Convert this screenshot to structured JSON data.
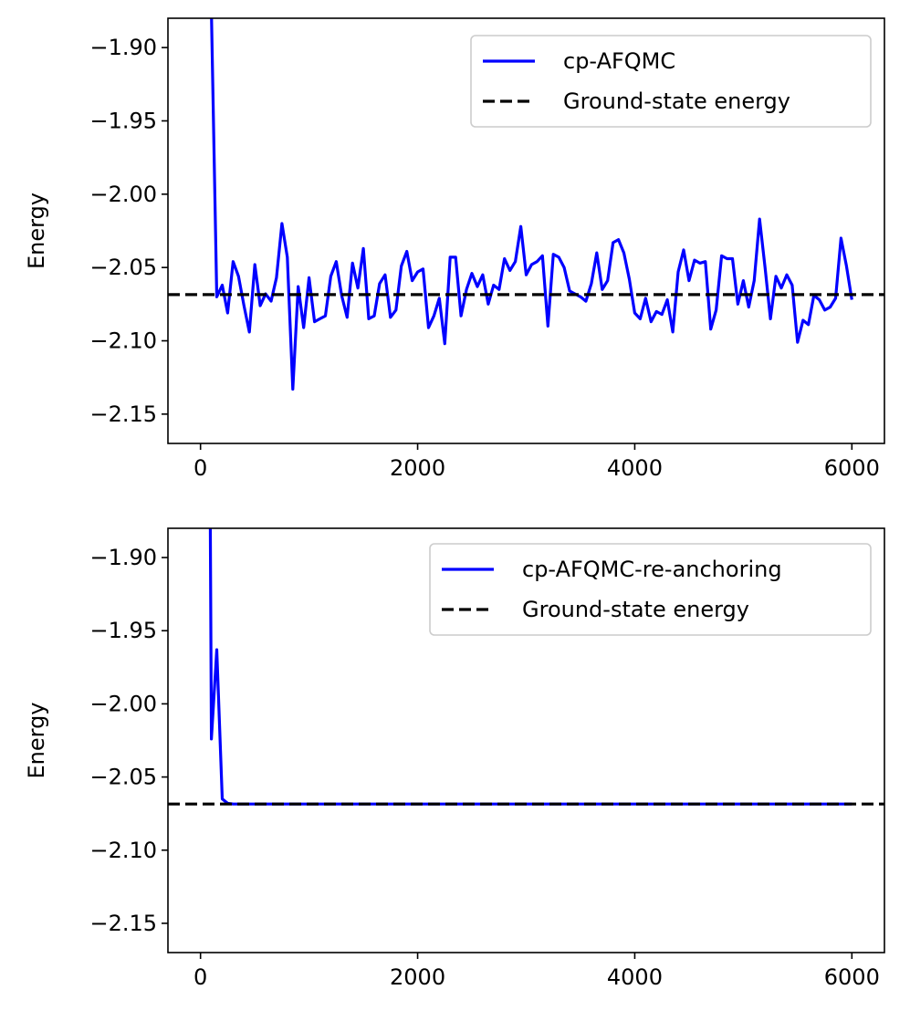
{
  "chart_data": [
    {
      "type": "line",
      "xlabel": "",
      "ylabel": "Energy",
      "xlim": [
        -300,
        6300
      ],
      "ylim": [
        -2.17,
        -1.88
      ],
      "xticks": [
        0,
        2000,
        4000,
        6000
      ],
      "xtick_labels": [
        "0",
        "2000",
        "4000",
        "6000"
      ],
      "yticks": [
        -2.15,
        -2.1,
        -2.05,
        -2.0,
        -1.95,
        -1.9
      ],
      "ytick_labels": [
        "−2.15",
        "−2.10",
        "−2.05",
        "−2.00",
        "−1.95",
        "−1.90"
      ],
      "grid": false,
      "legend_position": "top-right",
      "series": [
        {
          "name": "cp-AFQMC",
          "style": "solid",
          "color": "#0000ff",
          "x": [
            100,
            150,
            200,
            250,
            300,
            350,
            400,
            450,
            500,
            550,
            600,
            650,
            700,
            750,
            800,
            850,
            900,
            950,
            1000,
            1050,
            1100,
            1150,
            1200,
            1250,
            1300,
            1350,
            1400,
            1450,
            1500,
            1550,
            1600,
            1650,
            1700,
            1750,
            1800,
            1850,
            1900,
            1950,
            2000,
            2050,
            2100,
            2150,
            2200,
            2250,
            2300,
            2350,
            2400,
            2450,
            2500,
            2550,
            2600,
            2650,
            2700,
            2750,
            2800,
            2850,
            2900,
            2950,
            3000,
            3050,
            3100,
            3150,
            3200,
            3250,
            3300,
            3350,
            3400,
            3450,
            3500,
            3550,
            3600,
            3650,
            3700,
            3750,
            3800,
            3850,
            3900,
            3950,
            4000,
            4050,
            4100,
            4150,
            4200,
            4250,
            4300,
            4350,
            4400,
            4450,
            4500,
            4550,
            4600,
            4650,
            4700,
            4750,
            4800,
            4850,
            4900,
            4950,
            5000,
            5050,
            5100,
            5150,
            5200,
            5250,
            5300,
            5350,
            5400,
            5450,
            5500,
            5550,
            5600,
            5650,
            5700,
            5750,
            5800,
            5850,
            5900,
            5950,
            6000
          ],
          "y": [
            -1.875,
            -2.07,
            -2.062,
            -2.081,
            -2.046,
            -2.056,
            -2.076,
            -2.094,
            -2.048,
            -2.076,
            -2.068,
            -2.073,
            -2.057,
            -2.02,
            -2.043,
            -2.133,
            -2.063,
            -2.091,
            -2.057,
            -2.087,
            -2.085,
            -2.083,
            -2.056,
            -2.046,
            -2.069,
            -2.084,
            -2.047,
            -2.064,
            -2.037,
            -2.085,
            -2.083,
            -2.061,
            -2.055,
            -2.084,
            -2.079,
            -2.049,
            -2.039,
            -2.059,
            -2.053,
            -2.051,
            -2.091,
            -2.083,
            -2.071,
            -2.102,
            -2.043,
            -2.043,
            -2.083,
            -2.065,
            -2.054,
            -2.063,
            -2.055,
            -2.075,
            -2.062,
            -2.065,
            -2.044,
            -2.052,
            -2.046,
            -2.022,
            -2.055,
            -2.048,
            -2.046,
            -2.042,
            -2.09,
            -2.041,
            -2.043,
            -2.05,
            -2.066,
            -2.068,
            -2.07,
            -2.073,
            -2.061,
            -2.04,
            -2.065,
            -2.059,
            -2.033,
            -2.031,
            -2.04,
            -2.058,
            -2.081,
            -2.085,
            -2.071,
            -2.087,
            -2.08,
            -2.082,
            -2.072,
            -2.094,
            -2.053,
            -2.038,
            -2.059,
            -2.045,
            -2.047,
            -2.046,
            -2.092,
            -2.079,
            -2.042,
            -2.044,
            -2.044,
            -2.075,
            -2.059,
            -2.077,
            -2.059,
            -2.017,
            -2.05,
            -2.085,
            -2.056,
            -2.064,
            -2.055,
            -2.062,
            -2.101,
            -2.086,
            -2.089,
            -2.069,
            -2.072,
            -2.079,
            -2.077,
            -2.071,
            -2.03,
            -2.049,
            -2.072
          ]
        },
        {
          "name": "Ground-state energy",
          "style": "dashed",
          "color": "#000000",
          "x": [
            -300,
            6300
          ],
          "y": [
            -2.0685,
            -2.0685
          ]
        }
      ]
    },
    {
      "type": "line",
      "xlabel": "",
      "ylabel": "Energy",
      "xlim": [
        -300,
        6300
      ],
      "ylim": [
        -2.17,
        -1.88
      ],
      "xticks": [
        0,
        2000,
        4000,
        6000
      ],
      "xtick_labels": [
        "0",
        "2000",
        "4000",
        "6000"
      ],
      "yticks": [
        -2.15,
        -2.1,
        -2.05,
        -2.0,
        -1.95,
        -1.9
      ],
      "ytick_labels": [
        "−2.15",
        "−2.10",
        "−2.05",
        "−2.00",
        "−1.95",
        "−1.90"
      ],
      "grid": false,
      "legend_position": "top-right",
      "series": [
        {
          "name": "cp-AFQMC-re-anchoring",
          "style": "solid",
          "color": "#0000ff",
          "x": [
            90,
            100,
            150,
            200,
            250,
            300,
            400,
            500,
            600,
            800,
            1000,
            1500,
            2000,
            2500,
            3000,
            3500,
            4000,
            4500,
            5000,
            5500,
            6000
          ],
          "y": [
            -1.875,
            -2.024,
            -1.963,
            -2.065,
            -2.068,
            -2.0685,
            -2.0685,
            -2.0685,
            -2.0685,
            -2.0685,
            -2.0685,
            -2.0685,
            -2.0685,
            -2.0685,
            -2.0685,
            -2.0685,
            -2.0685,
            -2.0685,
            -2.0685,
            -2.0685,
            -2.0685
          ]
        },
        {
          "name": "Ground-state energy",
          "style": "dashed",
          "color": "#000000",
          "x": [
            -300,
            6300
          ],
          "y": [
            -2.0685,
            -2.0685
          ]
        }
      ]
    }
  ]
}
